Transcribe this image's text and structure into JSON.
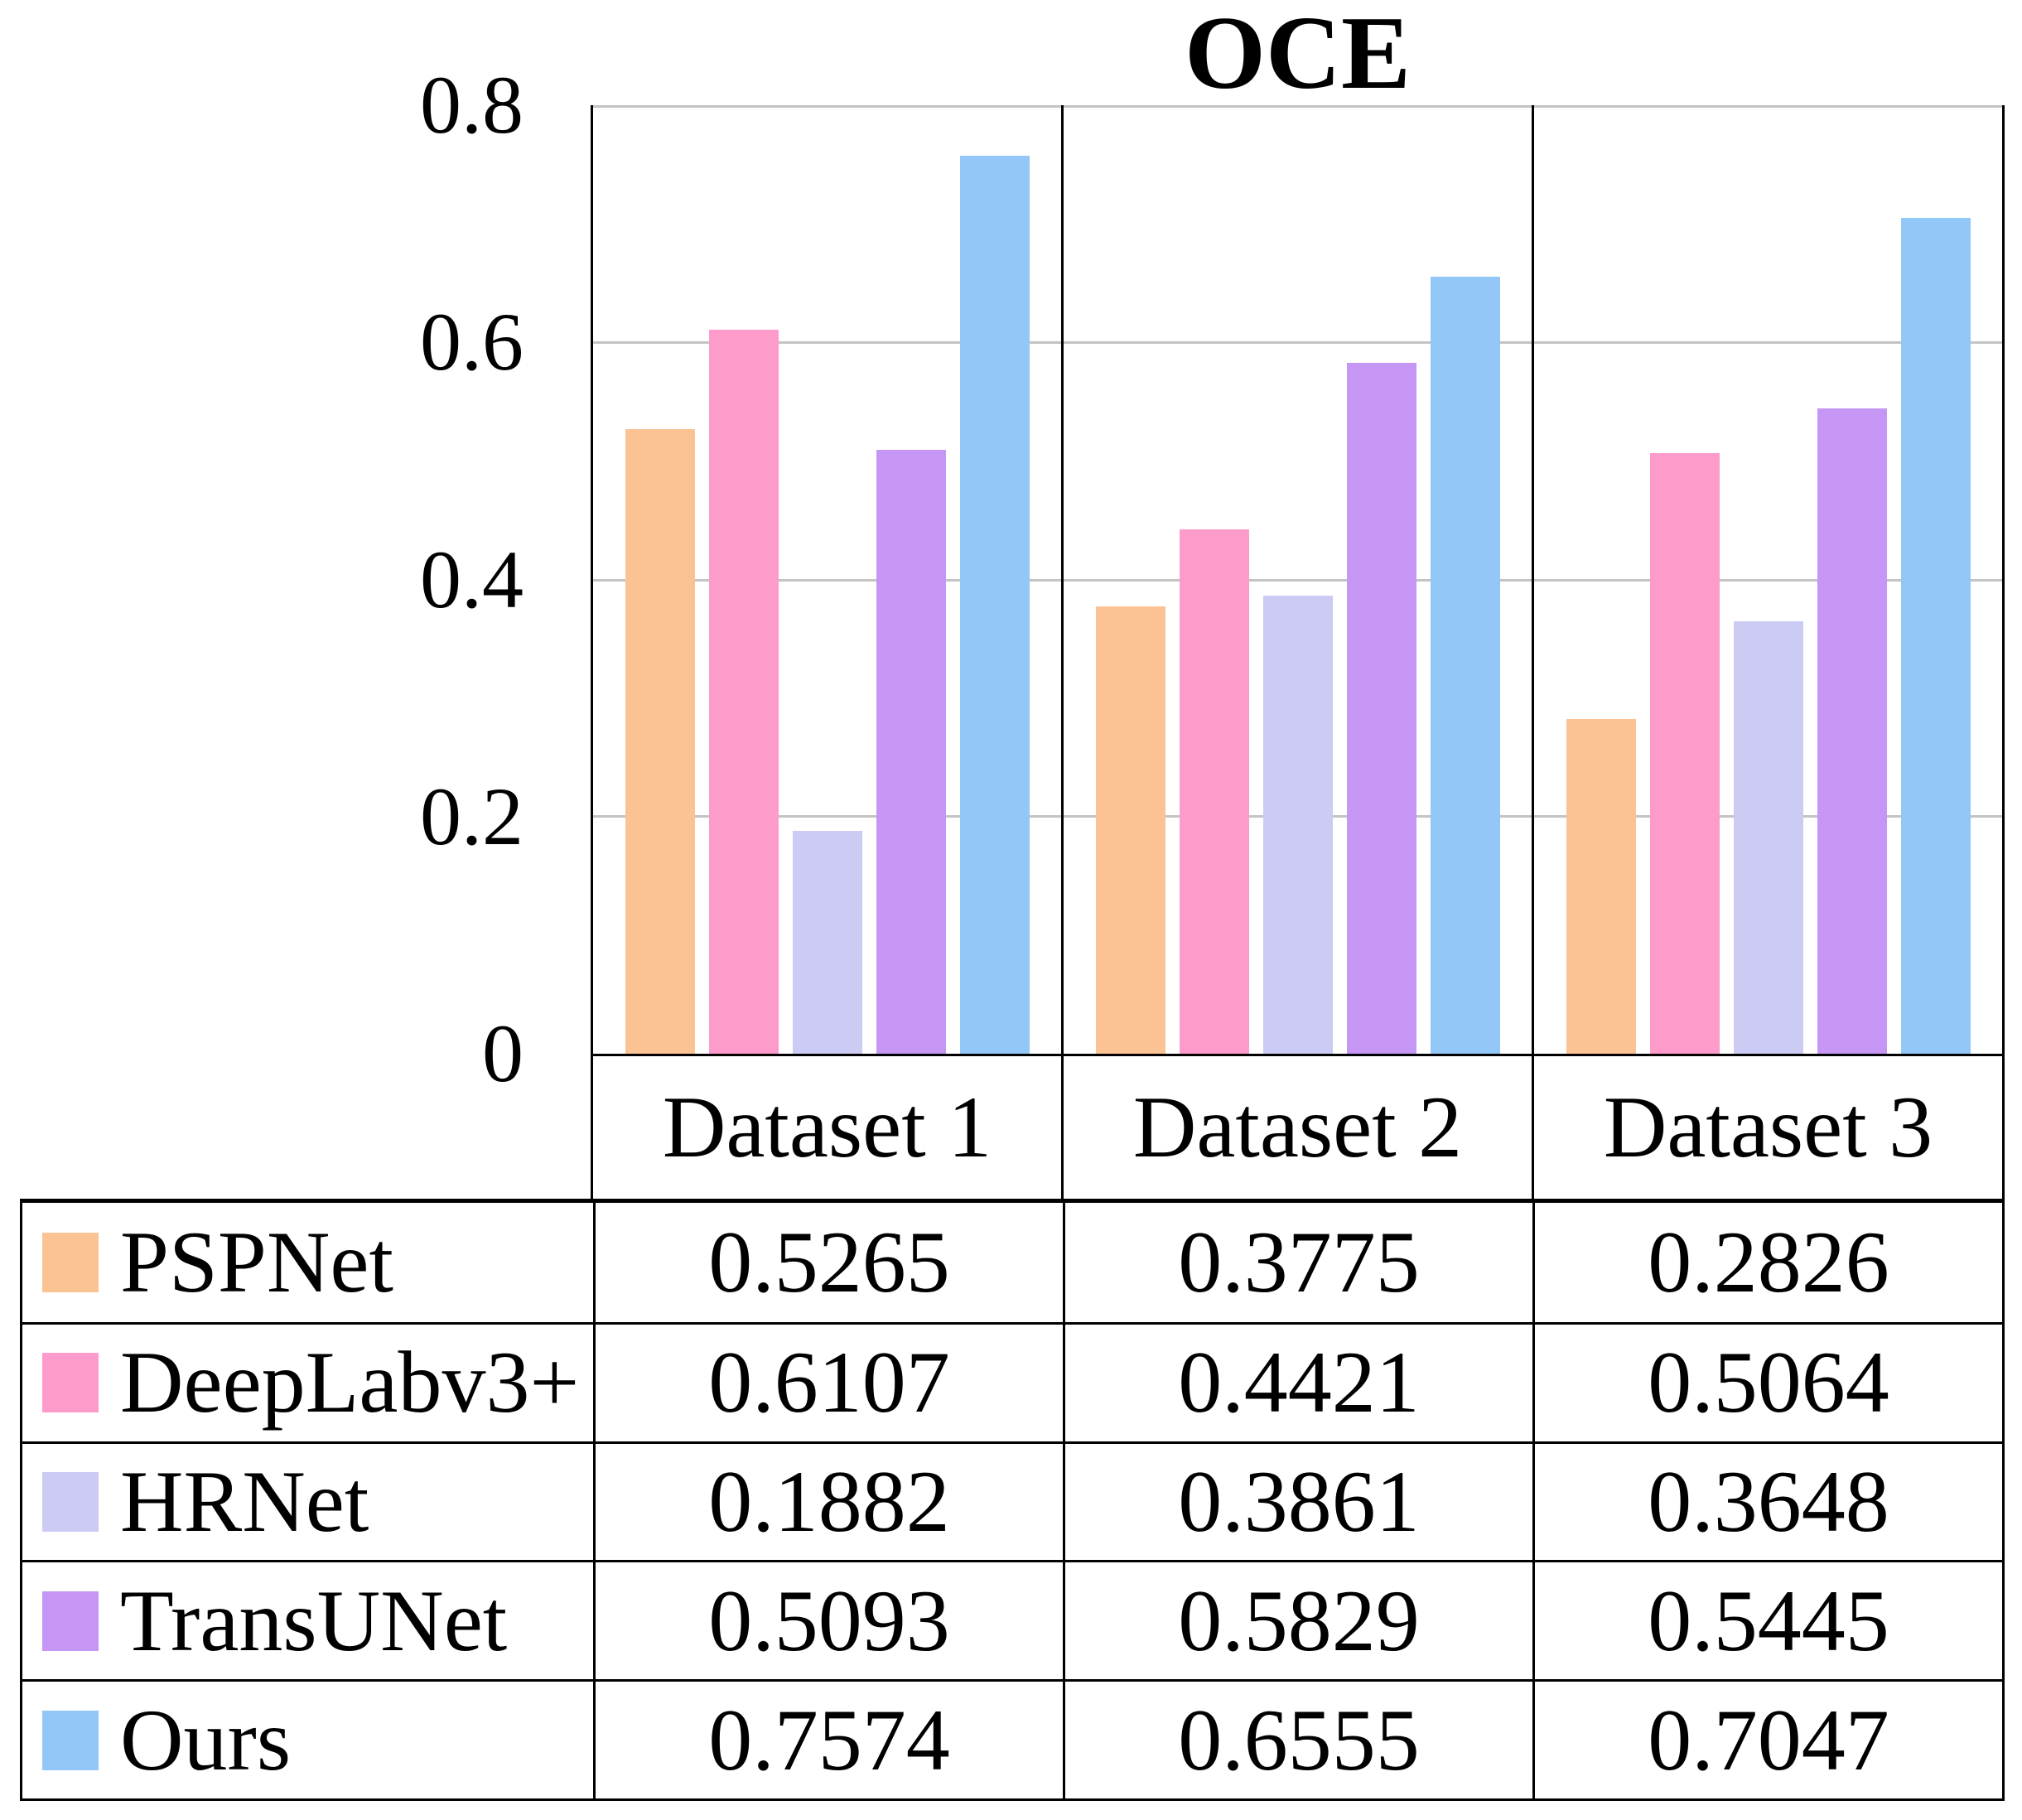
{
  "title": "OCE",
  "chart_data": {
    "type": "bar",
    "title": "OCE",
    "categories": [
      "Dataset 1",
      "Dataset 2",
      "Dataset 3"
    ],
    "series": [
      {
        "name": "PSPNet",
        "color": "#FBC394",
        "values": [
          0.5265,
          0.3775,
          0.2826
        ]
      },
      {
        "name": "DeepLabv3+",
        "color": "#FD9BCA",
        "values": [
          0.6107,
          0.4421,
          0.5064
        ]
      },
      {
        "name": "HRNet",
        "color": "#CBCBF4",
        "values": [
          0.1882,
          0.3861,
          0.3648
        ]
      },
      {
        "name": "TransUNet",
        "color": "#C596F4",
        "values": [
          0.5093,
          0.5829,
          0.5445
        ]
      },
      {
        "name": "Ours",
        "color": "#92C7F7",
        "values": [
          0.7574,
          0.6555,
          0.7047
        ]
      }
    ],
    "xlabel": "",
    "ylabel": "",
    "ylim": [
      0,
      0.8
    ],
    "y_ticks": [
      "0.8",
      "0.6",
      "0.4",
      "0.2",
      "0"
    ],
    "grid": "horizontal",
    "gridline_color": "#C4C4C4",
    "legend_position": "data-table-left-column"
  }
}
